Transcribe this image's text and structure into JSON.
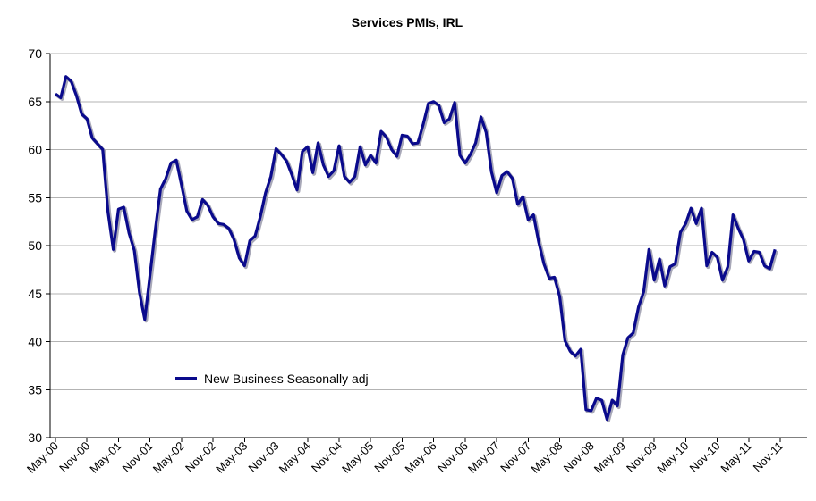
{
  "chart_data": {
    "type": "line",
    "title": "Services PMIs, IRL",
    "xlabel": "",
    "ylabel": "",
    "ylim": [
      30,
      70
    ],
    "yticks": [
      30,
      35,
      40,
      45,
      50,
      55,
      60,
      65,
      70
    ],
    "grid": true,
    "legend_position": "inside-lower-left",
    "x_tick_labels": [
      "May-00",
      "Nov-00",
      "May-01",
      "Nov-01",
      "May-02",
      "Nov-02",
      "May-03",
      "Nov-03",
      "May-04",
      "Nov-04",
      "May-05",
      "Nov-05",
      "May-06",
      "Nov-06",
      "May-07",
      "Nov-07",
      "May-08",
      "Nov-08",
      "May-09",
      "Nov-09",
      "May-10",
      "Nov-10",
      "May-11",
      "Nov-11"
    ],
    "x_start": "May-00",
    "x_frequency": "monthly",
    "series": [
      {
        "name": "New Business Seasonally adj",
        "color": "#0a0a8c",
        "values": [
          65.8,
          65.4,
          67.6,
          67.1,
          65.6,
          63.7,
          63.2,
          61.2,
          60.6,
          60,
          53.5,
          49.6,
          53.8,
          54,
          51.3,
          49.5,
          45.1,
          42.3,
          47,
          51.6,
          55.9,
          57,
          58.6,
          58.9,
          56.3,
          53.6,
          52.7,
          53,
          54.8,
          54.2,
          53,
          52.3,
          52.2,
          51.8,
          50.6,
          48.7,
          47.9,
          50.5,
          51,
          53,
          55.5,
          57.2,
          60.1,
          59.5,
          58.8,
          57.4,
          55.8,
          59.8,
          60.3,
          57.6,
          60.7,
          58.4,
          57.2,
          57.8,
          60.4,
          57.2,
          56.6,
          57.2,
          60.3,
          58.4,
          59.4,
          58.6,
          61.9,
          61.3,
          60,
          59.3,
          61.5,
          61.4,
          60.6,
          60.7,
          62.6,
          64.8,
          65,
          64.6,
          62.8,
          63.2,
          64.9,
          59.4,
          58.6,
          59.5,
          60.7,
          63.4,
          61.8,
          57.7,
          55.5,
          57.3,
          57.7,
          57,
          54.3,
          55.1,
          52.7,
          53.2,
          50.4,
          48.1,
          46.6,
          46.7,
          44.7,
          40.1,
          39,
          38.5,
          39.2,
          32.9,
          32.8,
          34.1,
          33.9,
          31.9,
          33.9,
          33.3,
          38.6,
          40.4,
          40.9,
          43.6,
          45.2,
          49.6,
          46.4,
          48.6,
          45.8,
          47.8,
          48.1,
          51.4,
          52.3,
          53.9,
          52.3,
          53.9,
          47.9,
          49.3,
          48.8,
          46.4,
          47.8,
          53.2,
          51.8,
          50.6,
          48.4,
          49.4,
          49.3,
          47.9,
          47.6,
          49.6
        ]
      }
    ]
  }
}
